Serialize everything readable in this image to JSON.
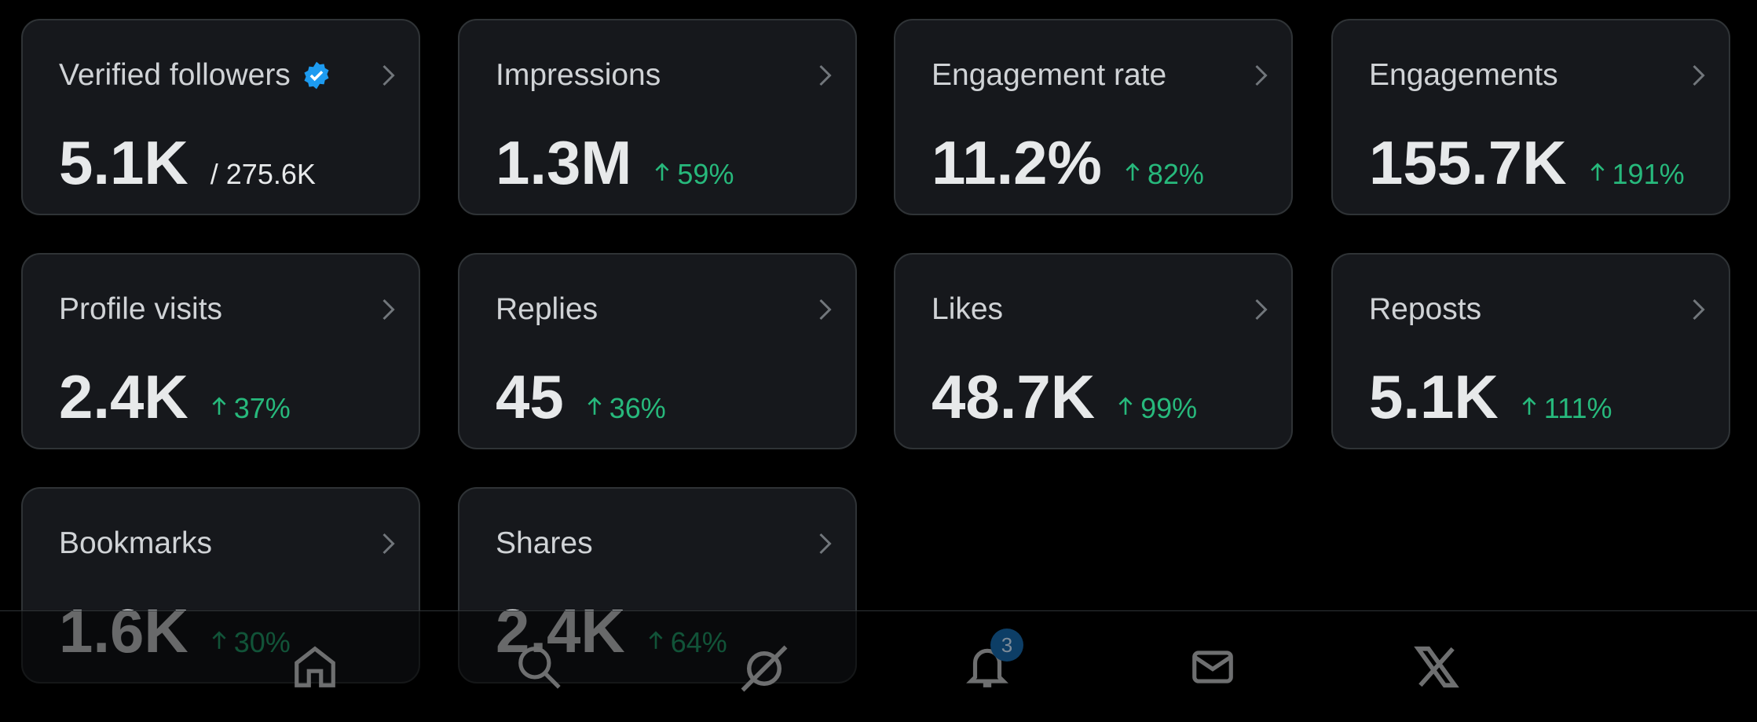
{
  "cards": [
    {
      "label": "Verified followers",
      "value": "5.1K",
      "secondary": "/ 275.6K"
    },
    {
      "label": "Impressions",
      "value": "1.3M",
      "change": "59%"
    },
    {
      "label": "Engagement rate",
      "value": "11.2%",
      "change": "82%"
    },
    {
      "label": "Engagements",
      "value": "155.7K",
      "change": "191%"
    },
    {
      "label": "Profile visits",
      "value": "2.4K",
      "change": "37%"
    },
    {
      "label": "Replies",
      "value": "45",
      "change": "36%"
    },
    {
      "label": "Likes",
      "value": "48.7K",
      "change": "99%"
    },
    {
      "label": "Reposts",
      "value": "5.1K",
      "change": "111%"
    },
    {
      "label": "Bookmarks",
      "value": "1.6K",
      "change": "30%"
    },
    {
      "label": "Shares",
      "value": "2.4K",
      "change": "64%"
    }
  ],
  "nav": {
    "notification_count": "3"
  }
}
